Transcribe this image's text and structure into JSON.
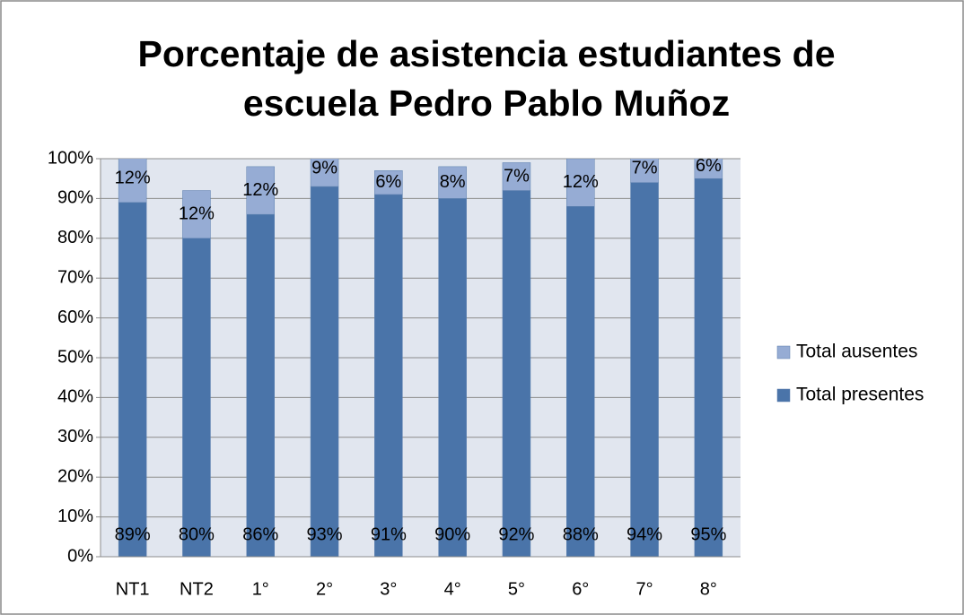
{
  "chart_data": {
    "type": "bar",
    "stacked": true,
    "title": [
      "Porcentaje de asistencia estudiantes de",
      "escuela Pedro Pablo Muñoz"
    ],
    "categories": [
      "NT1",
      "NT2",
      "1°",
      "2°",
      "3°",
      "4°",
      "5°",
      "6°",
      "7°",
      "8°"
    ],
    "series": [
      {
        "name": "Total presentes",
        "color": "#4a74a9",
        "values": [
          89,
          80,
          86,
          93,
          91,
          90,
          92,
          88,
          94,
          95
        ],
        "value_labels": [
          "89%",
          "80%",
          "86%",
          "93%",
          "91%",
          "90%",
          "92%",
          "88%",
          "94%",
          "95%"
        ]
      },
      {
        "name": "Total ausentes",
        "color": "#96acd4",
        "values": [
          12,
          12,
          12,
          9,
          6,
          8,
          7,
          12,
          7,
          6
        ],
        "value_labels": [
          "12%",
          "12%",
          "12%",
          "9%",
          "6%",
          "8%",
          "7%",
          "12%",
          "7%",
          "6%"
        ]
      }
    ],
    "ylim": [
      0,
      100
    ],
    "yticks": [
      {
        "value": 0,
        "label": "0%"
      },
      {
        "value": 10,
        "label": "10%"
      },
      {
        "value": 20,
        "label": "20%"
      },
      {
        "value": 30,
        "label": "30%"
      },
      {
        "value": 40,
        "label": "40%"
      },
      {
        "value": 50,
        "label": "50%"
      },
      {
        "value": 60,
        "label": "60%"
      },
      {
        "value": 70,
        "label": "70%"
      },
      {
        "value": 80,
        "label": "80%"
      },
      {
        "value": 90,
        "label": "90%"
      },
      {
        "value": 100,
        "label": "100%"
      }
    ],
    "grid": true,
    "legend": "right"
  }
}
